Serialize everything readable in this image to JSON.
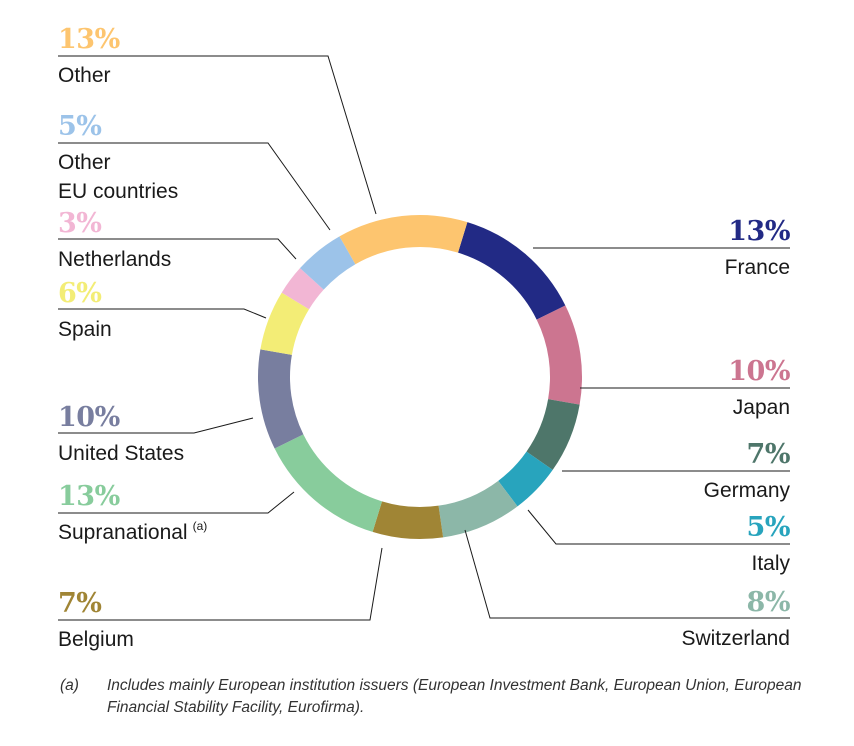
{
  "chart_data": {
    "type": "pie",
    "donut": true,
    "slices": [
      {
        "label": "France",
        "value": 13,
        "pct_label": "13%",
        "color": "#222a85"
      },
      {
        "label": "Japan",
        "value": 10,
        "pct_label": "10%",
        "color": "#cc7590"
      },
      {
        "label": "Germany",
        "value": 7,
        "pct_label": "7%",
        "color": "#4e766a"
      },
      {
        "label": "Italy",
        "value": 5,
        "pct_label": "5%",
        "color": "#28a4bd"
      },
      {
        "label": "Switzerland",
        "value": 8,
        "pct_label": "8%",
        "color": "#8cb7a8"
      },
      {
        "label": "Belgium",
        "value": 7,
        "pct_label": "7%",
        "color": "#a08535"
      },
      {
        "label": "Supranational",
        "value": 13,
        "pct_label": "13%",
        "color": "#88cc9c",
        "note": "(a)"
      },
      {
        "label": "United States",
        "value": 10,
        "pct_label": "10%",
        "color": "#787e9f"
      },
      {
        "label": "Spain",
        "value": 6,
        "pct_label": "6%",
        "color": "#f3ed76"
      },
      {
        "label": "Netherlands",
        "value": 3,
        "pct_label": "3%",
        "color": "#f2b6d4"
      },
      {
        "label": "Other EU countries",
        "label_lines": [
          "Other",
          "EU countries"
        ],
        "value": 5,
        "pct_label": "5%",
        "color": "#9cc3e9"
      },
      {
        "label": "Other",
        "value": 13,
        "pct_label": "13%",
        "color": "#fdc56f"
      }
    ]
  },
  "footnote": {
    "mark": "(a)",
    "text": "Includes mainly European institution issuers (European Investment Bank, European Union, European Financial Stability Facility, Eurofirma)."
  }
}
